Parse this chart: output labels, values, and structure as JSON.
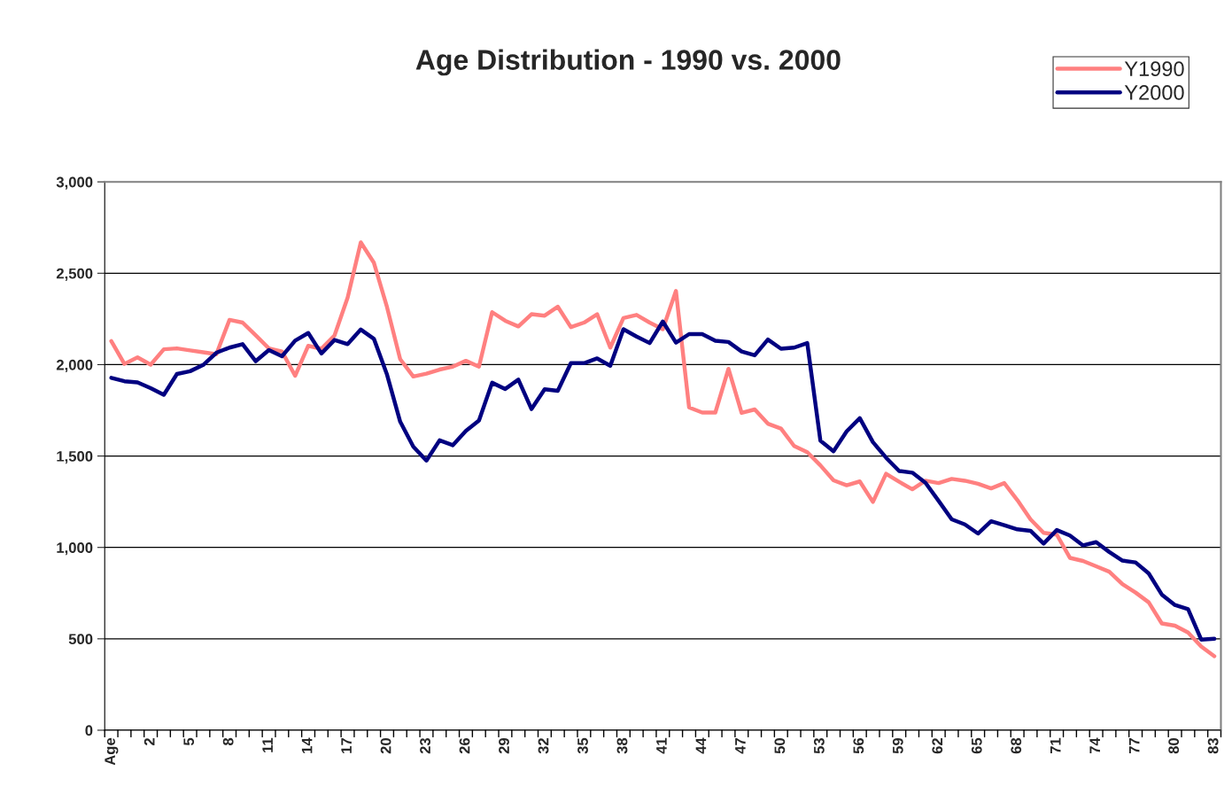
{
  "chart_data": {
    "type": "line",
    "title": "Age Distribution - 1990 vs. 2000",
    "categories": [
      "Age",
      null,
      null,
      "2",
      null,
      null,
      "5",
      null,
      null,
      "8",
      null,
      null,
      "11",
      null,
      null,
      "14",
      null,
      null,
      "17",
      null,
      null,
      "20",
      null,
      null,
      "23",
      null,
      null,
      "26",
      null,
      null,
      "29",
      null,
      null,
      "32",
      null,
      null,
      "35",
      null,
      null,
      "38",
      null,
      null,
      "41",
      null,
      null,
      "44",
      null,
      null,
      "47",
      null,
      null,
      "50",
      null,
      null,
      "53",
      null,
      null,
      "56",
      null,
      null,
      "59",
      null,
      null,
      "62",
      null,
      null,
      "65",
      null,
      null,
      "68",
      null,
      null,
      "71",
      null,
      null,
      "74",
      null,
      null,
      "77",
      null,
      null,
      "80",
      null,
      null,
      "83"
    ],
    "series": [
      {
        "name": "Y1990",
        "color": "#ff8080",
        "values": [
          2129,
          2004,
          2040,
          2000,
          2084,
          2089,
          2078,
          2068,
          2057,
          2245,
          2230,
          2160,
          2089,
          2072,
          1939,
          2103,
          2087,
          2160,
          2367,
          2669,
          2557,
          2314,
          2030,
          1935,
          1951,
          1973,
          1989,
          2021,
          1989,
          2287,
          2240,
          2209,
          2276,
          2268,
          2317,
          2205,
          2230,
          2276,
          2093,
          2255,
          2272,
          2230,
          2194,
          2403,
          1766,
          1738,
          1738,
          1977,
          1736,
          1755,
          1677,
          1650,
          1555,
          1521,
          1449,
          1367,
          1340,
          1361,
          1249,
          1403,
          1359,
          1318,
          1365,
          1352,
          1375,
          1365,
          1348,
          1323,
          1352,
          1259,
          1154,
          1080,
          1070,
          943,
          926,
          897,
          867,
          799,
          753,
          700,
          584,
          572,
          534,
          458,
          405
        ]
      },
      {
        "name": "Y2000",
        "color": "#000080",
        "values": [
          1928,
          1909,
          1903,
          1871,
          1835,
          1949,
          1964,
          1998,
          2065,
          2093,
          2112,
          2019,
          2080,
          2046,
          2131,
          2173,
          2061,
          2135,
          2112,
          2192,
          2141,
          1945,
          1688,
          1551,
          1475,
          1586,
          1559,
          1637,
          1694,
          1901,
          1867,
          1918,
          1757,
          1865,
          1857,
          2008,
          2008,
          2034,
          1994,
          2194,
          2154,
          2118,
          2236,
          2120,
          2167,
          2167,
          2131,
          2124,
          2072,
          2051,
          2137,
          2087,
          2093,
          2118,
          1584,
          1526,
          1635,
          1707,
          1576,
          1491,
          1418,
          1409,
          1354,
          1255,
          1154,
          1126,
          1076,
          1143,
          1122,
          1099,
          1091,
          1021,
          1095,
          1065,
          1011,
          1029,
          975,
          928,
          918,
          858,
          742,
          685,
          662,
          496,
          500
        ]
      }
    ],
    "ylim": [
      0,
      3000
    ],
    "yticks": [
      0,
      {
        "value": 500,
        "label": "500"
      },
      {
        "value": 1000,
        "label": "1,000"
      },
      {
        "value": 1500,
        "label": "1,500"
      },
      {
        "value": 2000,
        "label": "2,000"
      },
      {
        "value": 2500,
        "label": "2,500"
      },
      {
        "value": 3000,
        "label": "3,000"
      }
    ],
    "grid": "y",
    "legend": "top right",
    "marker": "none",
    "line_style": "solid"
  }
}
